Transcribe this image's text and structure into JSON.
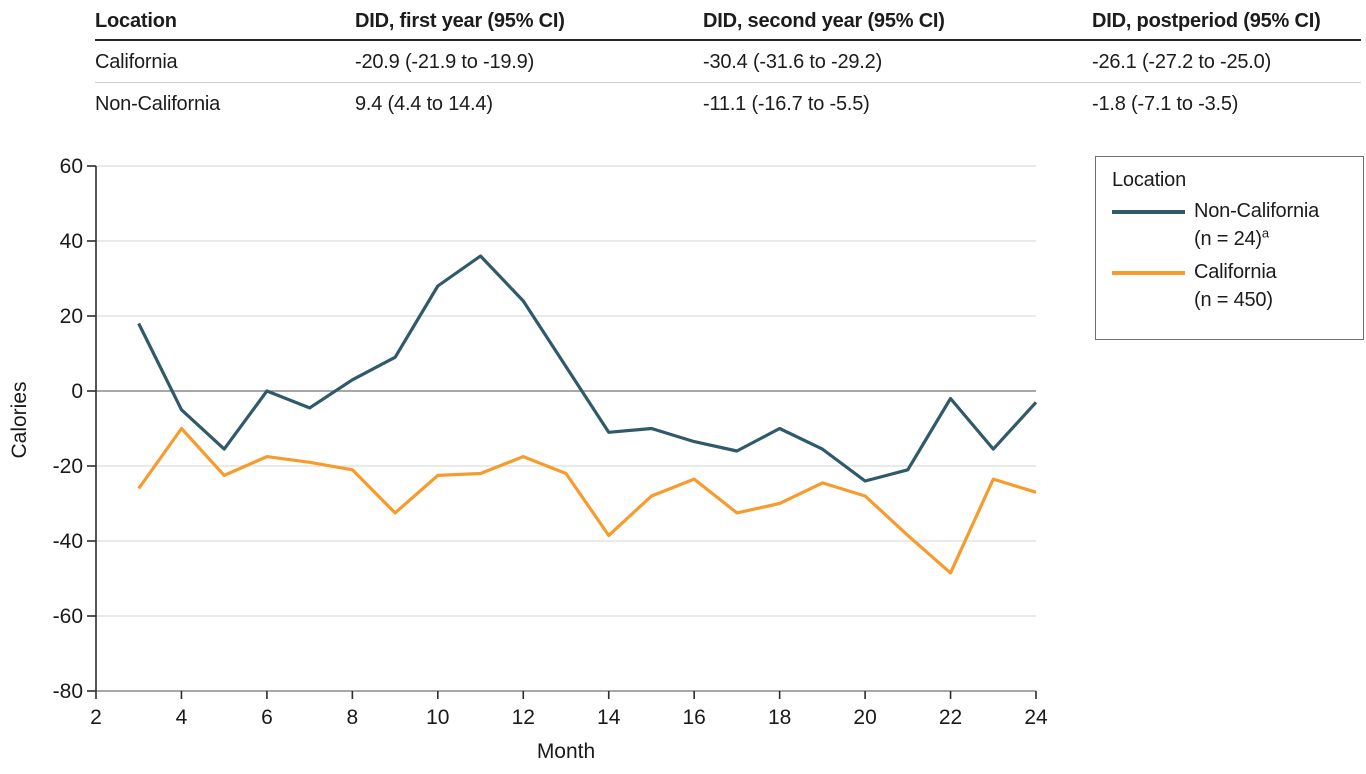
{
  "table": {
    "headers": [
      "Location",
      "DID, first year (95% CI)",
      "DID, second year (95% CI)",
      "DID, postperiod (95% CI)"
    ],
    "rows": [
      {
        "cells": [
          "California",
          "-20.9 (-21.9 to -19.9)",
          "-30.4 (-31.6 to -29.2)",
          "-26.1 (-27.2 to -25.0)"
        ]
      },
      {
        "cells": [
          "Non-California",
          "9.4 (4.4 to 14.4)",
          "-11.1 (-16.7 to -5.5)",
          "-1.8 (-7.1 to -3.5)"
        ]
      }
    ]
  },
  "legend": {
    "title": "Location",
    "entries": [
      {
        "label": "Non-California",
        "sub": "(n = 24)",
        "sup": "a",
        "color": "#30596A"
      },
      {
        "label": "California",
        "sub": "(n = 450)",
        "sup": "",
        "color": "#F89B2D"
      }
    ]
  },
  "chart_data": {
    "type": "line",
    "title": "",
    "xlabel": "Month",
    "ylabel": "Calories",
    "xlim": [
      2,
      24
    ],
    "ylim": [
      -80,
      60
    ],
    "x_ticks": [
      2,
      4,
      6,
      8,
      10,
      12,
      14,
      16,
      18,
      20,
      22,
      24
    ],
    "y_ticks": [
      60,
      40,
      20,
      0,
      -20,
      -40,
      -60,
      -80
    ],
    "grid": true,
    "legend_position": "right",
    "x": [
      3,
      4,
      5,
      6,
      7,
      8,
      9,
      10,
      11,
      12,
      13,
      14,
      15,
      16,
      17,
      18,
      19,
      20,
      21,
      22,
      23,
      24
    ],
    "series": [
      {
        "name": "Non-California (n = 24)",
        "color": "#30596A",
        "values": [
          18,
          -5,
          -15.5,
          0,
          -4.5,
          3,
          9,
          28,
          36,
          24,
          6.5,
          -11,
          -10,
          -13.5,
          -16,
          -10,
          -15.5,
          -24,
          -21,
          -2,
          -15.5,
          -3
        ]
      },
      {
        "name": "California (n = 450)",
        "color": "#F89B2D",
        "values": [
          -26,
          -10,
          -22.5,
          -17.5,
          -19,
          -21,
          -32.5,
          -22.5,
          -22,
          -17.5,
          -22,
          -38.5,
          -28,
          -23.5,
          -32.5,
          -30,
          -24.5,
          -28,
          -38.5,
          -48.5,
          -23.5,
          -27
        ]
      }
    ],
    "colors": {
      "gridline": "#e3e3e3",
      "zero_line": "#8c8c8c",
      "axis_line": "#8c8c8c",
      "spine": "#2d2d2d",
      "tick_label": "#1a1a1a"
    }
  }
}
